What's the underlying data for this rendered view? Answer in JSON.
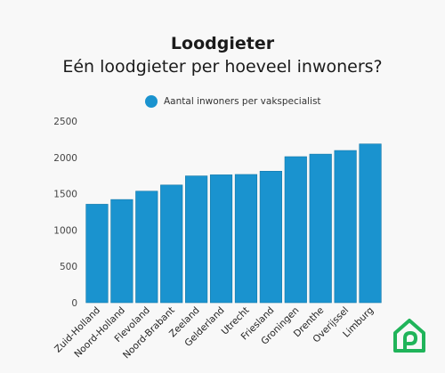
{
  "title": "Loodgieter",
  "subtitle": "Eén loodgieter per hoeveel inwoners?",
  "colors": {
    "bar": "#1a93cf",
    "bar_edge": "#1478a8",
    "axis": "#444444",
    "logo": "#20b45a"
  },
  "logo_icon": "house-wrench-logo",
  "chart_data": {
    "type": "bar",
    "title": "",
    "xlabel": "",
    "ylabel": "",
    "ylim": [
      0,
      2500
    ],
    "yticks": [
      0,
      500,
      1000,
      1500,
      2000,
      2500
    ],
    "grid": false,
    "legend_position": "top-center",
    "categories": [
      "Zuid-Holland",
      "Noord-Holland",
      "Flevoland",
      "Noord-Brabant",
      "Zeeland",
      "Gelderland",
      "Utrecht",
      "Friesland",
      "Groningen",
      "Drenthe",
      "Overijssel",
      "Limburg"
    ],
    "series": [
      {
        "name": "Aantal inwoners per vakspecialist",
        "values": [
          1355,
          1420,
          1535,
          1620,
          1745,
          1760,
          1765,
          1810,
          2010,
          2045,
          2095,
          2185
        ]
      }
    ]
  }
}
